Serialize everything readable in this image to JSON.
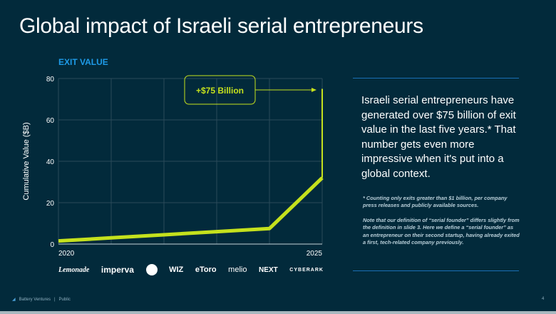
{
  "title": "Global impact of Israeli serial entrepreneurs",
  "subtitle": "EXIT VALUE",
  "chart_data": {
    "type": "line",
    "ylabel": "Cumulative Value ($B)",
    "xlabel": "",
    "x": [
      2020,
      2021,
      2022,
      2023,
      2024,
      2025
    ],
    "x_tick_labels": [
      "2020",
      "2025"
    ],
    "y_ticks": [
      "0",
      "20",
      "40",
      "60",
      "80"
    ],
    "ylim": [
      0,
      80
    ],
    "xlim": [
      2020,
      2025
    ],
    "grid": true,
    "series": [
      {
        "values": [
          1.5,
          3,
          4.5,
          6,
          7.5,
          32
        ],
        "final_jump_to": 75
      }
    ],
    "line_color": "#c5e11d",
    "annotation": "+$75 Billion"
  },
  "body_text": "Israeli serial entrepreneurs have generated over $75 billion of exit value in the last five years.* That number gets even more impressive when it's put into a global context.",
  "footnote_1": "* Counting only exits greater than $1 billion, per company press releases and publicly available sources.",
  "footnote_2": "Note that our definition of “serial founder” differs slightly from the definition in slide 3. Here we define a “serial founder” as an entrepreneur on their second startup, having already exited a first, tech-related company previously.",
  "logos": [
    "Lemonade",
    "imperva",
    "Gong",
    "WIZ",
    "eToro",
    "melio",
    "NEXT",
    "CYBERARK"
  ],
  "footer": {
    "company": "Battery Ventures",
    "separator": "|",
    "classification": "Public",
    "page": "4"
  }
}
